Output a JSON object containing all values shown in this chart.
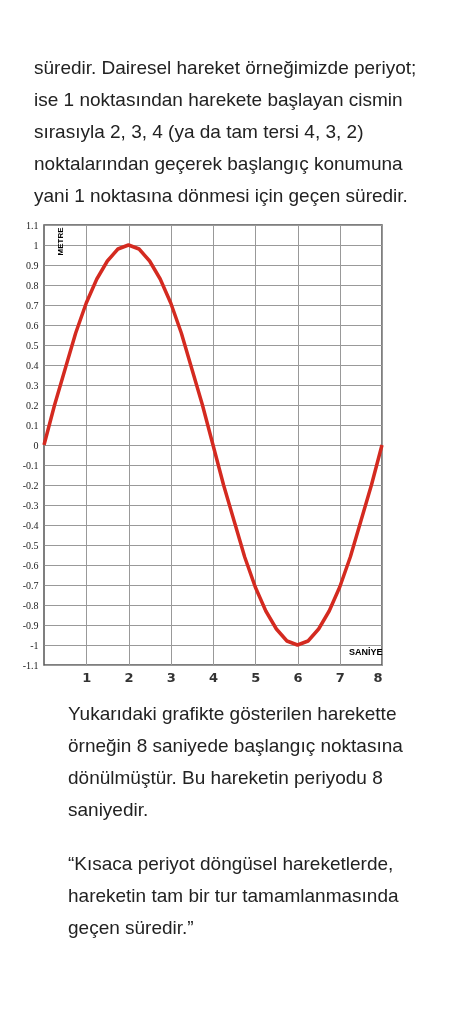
{
  "chart_data": {
    "type": "line",
    "xlabel": "SANİYE",
    "ylabel": "METRE",
    "annotations": [
      "süredir. Dairesel hareket örneğimizde periyot; ise 1 noktasından harekete başlayan cismin sırasıyla 2, 3, 4 (ya da tam tersi 4, 3, 2) noktalarından geçerek başlangıç konumuna yani 1 noktasına dönmesi için geçen süredir.",
      "Yukarıdaki grafikte gösterilen harekette örneğin 8 saniyede başlangıç noktasına dönülmüştür. Bu hareketin periyodu 8 saniyedir.",
      "“Kısaca periyot döngüsel hareketlerde, hareketin tam bir tur tamamlanmasında geçen süredir.”"
    ],
    "x": [
      0,
      0.25,
      0.5,
      0.75,
      1,
      1.25,
      1.5,
      1.75,
      2,
      2.25,
      2.5,
      2.75,
      3,
      3.25,
      3.5,
      3.75,
      4,
      4.25,
      4.5,
      4.75,
      5,
      5.25,
      5.5,
      5.75,
      6,
      6.25,
      6.5,
      6.75,
      7,
      7.25,
      7.5,
      7.75,
      8
    ],
    "series": [
      {
        "color": "#d42a20",
        "values": [
          0,
          0.2,
          0.38,
          0.56,
          0.71,
          0.83,
          0.92,
          0.98,
          1,
          0.98,
          0.92,
          0.83,
          0.71,
          0.56,
          0.38,
          0.2,
          0,
          -0.2,
          -0.38,
          -0.56,
          -0.71,
          -0.83,
          -0.92,
          -0.98,
          -1,
          -0.98,
          -0.92,
          -0.83,
          -0.71,
          -0.56,
          -0.38,
          -0.2,
          0
        ]
      }
    ],
    "xlim": [
      0,
      8
    ],
    "xticks": [
      1,
      2,
      3,
      4,
      5,
      6,
      7,
      8
    ],
    "ylim": [
      -1.1,
      1.1
    ],
    "yticks": [
      -1.1,
      -1,
      -0.9,
      -0.8,
      -0.7,
      -0.6,
      -0.5,
      -0.4,
      -0.3,
      -0.2,
      -0.1,
      0,
      0.1,
      0.2,
      0.3,
      0.4,
      0.5,
      0.6,
      0.7,
      0.8,
      0.9,
      1,
      1.1
    ],
    "grid": true,
    "marker": "none",
    "line_style": "solid"
  }
}
